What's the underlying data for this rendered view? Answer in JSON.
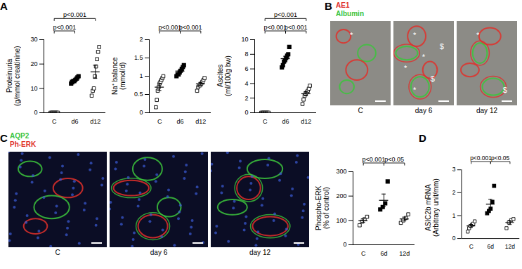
{
  "chart_data": [
    {
      "panel": "A",
      "type": "scatter",
      "y_label": [
        "Proteinuria",
        "(g/mmol creatinine)"
      ],
      "categories": [
        "C",
        "d6",
        "d12"
      ],
      "values": [
        [
          0,
          0,
          0,
          0,
          0,
          0,
          0,
          0
        ],
        [
          12,
          12.5,
          13,
          13,
          13.5,
          14,
          14.5,
          15
        ],
        [
          7,
          9,
          10,
          15,
          19,
          22,
          25,
          27
        ]
      ],
      "mean": [
        0,
        13.4,
        16.8
      ],
      "sem": [
        0,
        0.4,
        2.7
      ],
      "marker": [
        "square-open",
        "square",
        "square-open"
      ],
      "color": "#000000",
      "ylim": [
        0,
        30
      ],
      "yticks": [
        0,
        10,
        20,
        30
      ],
      "annotations": [
        {
          "from": "C",
          "to": "d6",
          "label": "p<0.001"
        },
        {
          "from": "C",
          "to": "d12",
          "label": "p<0.001"
        }
      ]
    },
    {
      "type": "scatter",
      "y_label": [
        "Na⁺ balance",
        "(mmol/d)"
      ],
      "categories": [
        "C",
        "d6",
        "d12"
      ],
      "values": [
        [
          0.15,
          0.35,
          0.6,
          0.7,
          0.8,
          0.85,
          0.9,
          0.95,
          1.0
        ],
        [
          1.0,
          1.05,
          1.05,
          1.1,
          1.15,
          1.2,
          1.25,
          1.3
        ],
        [
          0.6,
          0.7,
          0.75,
          0.75,
          0.8,
          0.85,
          0.9,
          0.95
        ]
      ],
      "mean": [
        0.7,
        1.14,
        0.79
      ],
      "sem": [
        0.09,
        0.04,
        0.04
      ],
      "marker": [
        "square-open",
        "square",
        "square-open"
      ],
      "color": "#000000",
      "ylim": [
        0,
        2
      ],
      "yticks": [
        0,
        0.5,
        1,
        1.5,
        2
      ],
      "annotations": [
        {
          "from": "C",
          "to": "d6",
          "label": "p<0.001"
        },
        {
          "from": "d6",
          "to": "d12",
          "label": "p<0.001"
        }
      ]
    },
    {
      "type": "scatter",
      "y_label": [
        "Ascites",
        "(ml/100g bw)"
      ],
      "categories": [
        "C",
        "d6",
        "d12"
      ],
      "values": [
        [
          0,
          0,
          0,
          0,
          0,
          0,
          0,
          0
        ],
        [
          6.2,
          6.5,
          7,
          7.2,
          7.5,
          7.8,
          8,
          9
        ],
        [
          1.2,
          1.8,
          2.3,
          2.6,
          2.8,
          3,
          3.3,
          3.7
        ]
      ],
      "mean": [
        0,
        7.4,
        2.6
      ],
      "sem": [
        0,
        0.33,
        0.29
      ],
      "marker": [
        "square-open",
        "square",
        "square-open"
      ],
      "color": "#000000",
      "ylim": [
        0,
        10
      ],
      "yticks": [
        0,
        2,
        4,
        6,
        8,
        10
      ],
      "annotations": [
        {
          "from": "C",
          "to": "d12",
          "label": "p<0.001"
        },
        {
          "from": "C",
          "to": "d6",
          "label": "p<0.001"
        },
        {
          "from": "d6",
          "to": "d12",
          "label": "p<0.001"
        }
      ]
    },
    {
      "type": "scatter",
      "y_label": [
        "Phospho-ERK",
        "(% of control)"
      ],
      "categories": [
        "C",
        "6d",
        "12d"
      ],
      "values": [
        [
          80,
          95,
          105,
          115
        ],
        [
          145,
          155,
          170,
          260
        ],
        [
          90,
          100,
          110,
          125
        ]
      ],
      "mean": [
        99,
        182.5,
        106
      ],
      "sem": [
        7.4,
        26,
        7.5
      ],
      "marker": [
        "square-open",
        "square",
        "square-open"
      ],
      "color": "#000000",
      "ylim": [
        0,
        300
      ],
      "yticks": [
        0,
        100,
        200,
        300
      ],
      "annotations": [
        {
          "from": "C",
          "to": "6d",
          "label": "p<0.001"
        },
        {
          "from": "6d",
          "to": "12d",
          "label": "p<0.05"
        }
      ]
    },
    {
      "panel": "D",
      "type": "scatter",
      "y_label": [
        "ASIC2b mRNA",
        "(Arbitrary unit/mm)"
      ],
      "categories": [
        "C",
        "6d",
        "12d"
      ],
      "values": [
        [
          0.3,
          0.45,
          0.55,
          0.6,
          0.65,
          0.75
        ],
        [
          1.1,
          1.2,
          1.3,
          1.6,
          2.3
        ],
        [
          0.45,
          0.7,
          0.8,
          0.85
        ]
      ],
      "mean": [
        0.55,
        1.5,
        0.7
      ],
      "sem": [
        0.065,
        0.21,
        0.09
      ],
      "marker": [
        "square-open",
        "square",
        "square-open"
      ],
      "color": "#000000",
      "ylim": [
        0,
        3
      ],
      "yticks": [
        0,
        1,
        2,
        3
      ],
      "annotations": [
        {
          "from": "C",
          "to": "6d",
          "label": "p<0.001"
        },
        {
          "from": "6d",
          "to": "12d",
          "label": "p<0.05"
        }
      ]
    }
  ],
  "image_panels": [
    {
      "panel": "B",
      "legend": [
        {
          "text": "AE1",
          "color": "#e0302a"
        },
        {
          "text": "Albumin",
          "color": "#3cc43c"
        }
      ],
      "images": [
        {
          "label": "C",
          "symbols": [
            "*"
          ]
        },
        {
          "label": "day 6",
          "symbols": [
            "*",
            "$",
            "*",
            "*",
            "$",
            "*"
          ]
        },
        {
          "label": "day 12",
          "symbols": [
            "*",
            "$"
          ]
        }
      ]
    },
    {
      "panel": "C",
      "legend": [
        {
          "text": "AQP2",
          "color": "#3cc43c"
        },
        {
          "text": "Ph-ERK",
          "color": "#e0302a"
        }
      ],
      "images": [
        {
          "label": "C"
        },
        {
          "label": "day 6"
        },
        {
          "label": "day 12"
        }
      ]
    }
  ]
}
